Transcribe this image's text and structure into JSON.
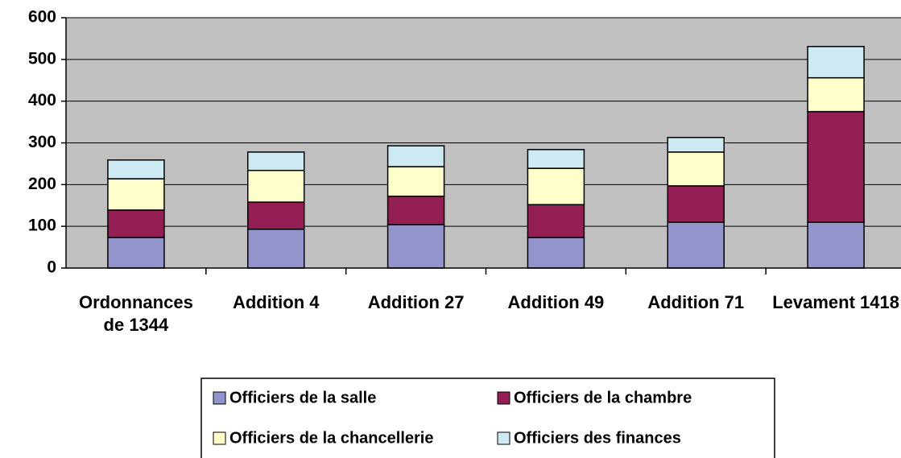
{
  "chart_data": {
    "type": "stacked_bar",
    "categories": [
      "Ordonnances de 1344",
      "Addition 4",
      "Addition 27",
      "Addition 49",
      "Addition 71",
      "Levament 1418"
    ],
    "series": [
      {
        "name": "Officiers de la salle",
        "color": "#9494cc",
        "values": [
          73,
          93,
          104,
          73,
          110,
          110
        ]
      },
      {
        "name": "Officiers de la chambre",
        "color": "#931f55",
        "values": [
          66,
          65,
          68,
          79,
          87,
          265
        ]
      },
      {
        "name": "Officiers de la chancellerie",
        "color": "#ffffcc",
        "values": [
          75,
          76,
          71,
          87,
          81,
          81
        ]
      },
      {
        "name": "Officiers des finances",
        "color": "#cde9f1",
        "values": [
          45,
          44,
          50,
          45,
          35,
          75
        ]
      }
    ],
    "ylim": [
      0,
      600
    ],
    "yticks": [
      0,
      100,
      200,
      300,
      400,
      500,
      600
    ],
    "grid": true,
    "legend": "bottom"
  }
}
